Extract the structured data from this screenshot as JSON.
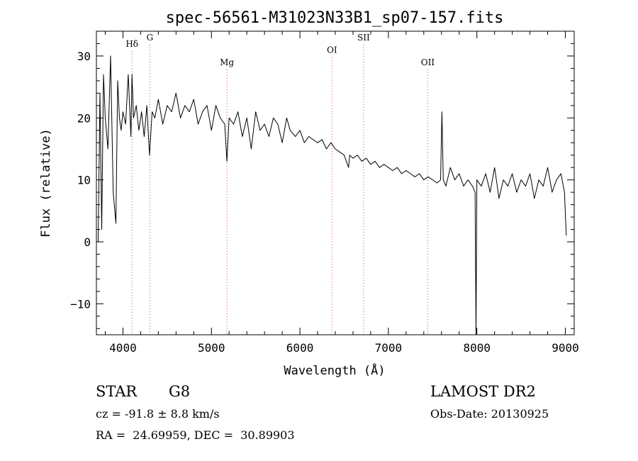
{
  "chart_data": {
    "type": "line",
    "title": "spec-56561-M31023N33B1_sp07-157.fits",
    "xlabel": "Wavelength (Å)",
    "ylabel": "Flux (relative)",
    "xlim": [
      3700,
      9100
    ],
    "ylim": [
      -15,
      34
    ],
    "x_ticks": [
      4000,
      5000,
      6000,
      7000,
      8000,
      9000
    ],
    "y_ticks": [
      -10,
      0,
      10,
      20,
      30
    ],
    "grid": false,
    "line_color": "#000000",
    "marker_color": "#cc4444",
    "lines": [
      {
        "label": "Hδ",
        "x": 4102,
        "label_y": 31.5
      },
      {
        "label": "G",
        "x": 4304,
        "label_y": 32.5
      },
      {
        "label": "Mg",
        "x": 5175,
        "label_y": 28.5
      },
      {
        "label": "OI",
        "x": 6363,
        "label_y": 30.5
      },
      {
        "label": "SII",
        "x": 6720,
        "label_y": 32.5
      },
      {
        "label": "OII",
        "x": 7445,
        "label_y": 28.5
      }
    ],
    "spectrum": {
      "x": [
        3720,
        3740,
        3760,
        3780,
        3800,
        3830,
        3860,
        3890,
        3920,
        3940,
        3960,
        3980,
        4000,
        4030,
        4060,
        4090,
        4102,
        4120,
        4150,
        4180,
        4210,
        4240,
        4270,
        4300,
        4330,
        4360,
        4400,
        4450,
        4500,
        4550,
        4600,
        4650,
        4700,
        4750,
        4800,
        4850,
        4900,
        4950,
        5000,
        5050,
        5100,
        5150,
        5175,
        5200,
        5250,
        5300,
        5350,
        5400,
        5450,
        5500,
        5550,
        5600,
        5650,
        5700,
        5750,
        5800,
        5850,
        5890,
        5950,
        6000,
        6050,
        6100,
        6150,
        6200,
        6250,
        6300,
        6350,
        6400,
        6450,
        6500,
        6550,
        6563,
        6600,
        6650,
        6700,
        6750,
        6800,
        6850,
        6900,
        6950,
        7000,
        7050,
        7100,
        7150,
        7200,
        7250,
        7300,
        7350,
        7400,
        7450,
        7500,
        7550,
        7590,
        7605,
        7620,
        7650,
        7700,
        7750,
        7800,
        7850,
        7900,
        7950,
        7980,
        7990,
        8000,
        8050,
        8100,
        8150,
        8200,
        8250,
        8300,
        8350,
        8400,
        8450,
        8500,
        8550,
        8600,
        8650,
        8700,
        8750,
        8800,
        8850,
        8900,
        8950,
        8990,
        9010
      ],
      "y": [
        0,
        24,
        2,
        27,
        20,
        15,
        30,
        8,
        3,
        26,
        20,
        18,
        21,
        19,
        27,
        17,
        27,
        20,
        22,
        18,
        21,
        17,
        22,
        14,
        21,
        20,
        23,
        19,
        22,
        21,
        24,
        20,
        22,
        21,
        23,
        19,
        21,
        22,
        18,
        22,
        20,
        19,
        13,
        20,
        19,
        21,
        17,
        20,
        15,
        21,
        18,
        19,
        17,
        20,
        19,
        16,
        20,
        18,
        17,
        18,
        16,
        17,
        16.5,
        16,
        16.5,
        15,
        16,
        15,
        14.5,
        14,
        12,
        14,
        13.5,
        14,
        13,
        13.5,
        12.5,
        13,
        12,
        12.5,
        12,
        11.5,
        12,
        11,
        11.5,
        11,
        10.5,
        11,
        10,
        10.5,
        10,
        9.5,
        10,
        21,
        10,
        9,
        12,
        10,
        11,
        9,
        10,
        9,
        8,
        -15,
        10,
        9,
        11,
        8,
        12,
        7,
        10,
        9,
        11,
        8,
        10,
        9,
        11,
        7,
        10,
        9,
        12,
        8,
        10,
        11,
        8,
        1
      ]
    }
  },
  "info": {
    "object_class": "STAR",
    "subclass": "G8",
    "survey": "LAMOST DR2",
    "velocity": "cz = -91.8 ± 8.8 km/s",
    "obs_date": "Obs-Date: 20130925",
    "coords": "RA =  24.69959, DEC =  30.89903"
  }
}
